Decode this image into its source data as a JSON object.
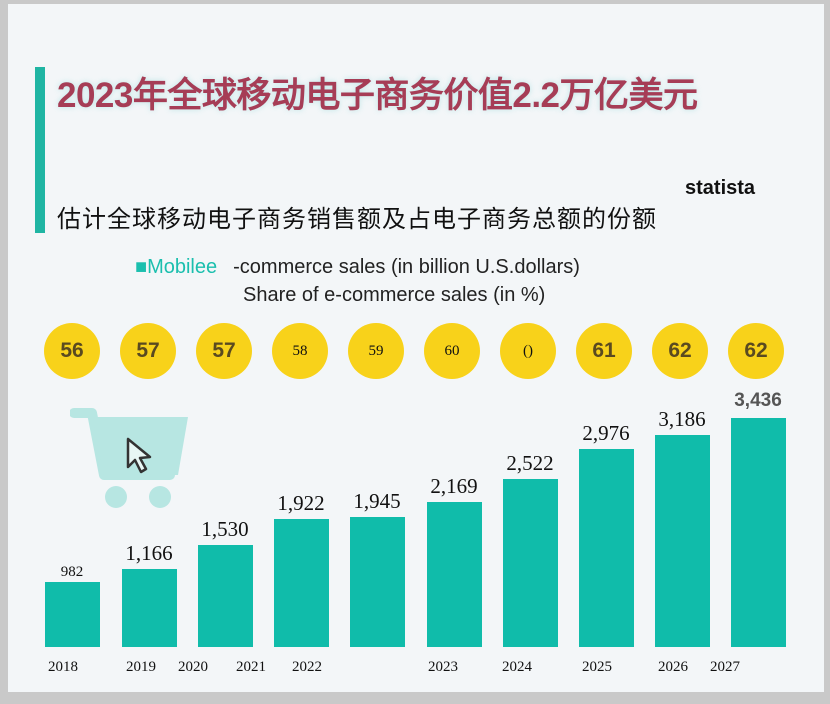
{
  "title": "2023年全球移动电子商务价值2.2万亿美元",
  "brand": "statista",
  "subtitle": "估计全球移动电子商务销售额及占电子商务总额的份额",
  "legend": {
    "marker": "■Mobilee",
    "sales_label": "-commerce sales (in billion U.S.dollars)",
    "share_label": "Share of e-commerce sales (in %)"
  },
  "colors": {
    "bar": "#10bcaa",
    "share_circle": "#f8d21a",
    "title": "#a63d56"
  },
  "chart_data": {
    "type": "bar",
    "title": "估计全球移动电子商务销售额及占电子商务总额的份额",
    "categories": [
      "2018",
      "2019",
      "2020",
      "2021",
      "2022",
      "2023",
      "2024",
      "2025",
      "2026",
      "2027"
    ],
    "x_tick_labels": [
      "2018",
      "2019",
      "2020",
      "2021",
      "2022",
      "2023",
      "2024",
      "2025",
      "2026",
      "2027"
    ],
    "series": [
      {
        "name": "Mobile e-commerce sales (in billion U.S.dollars)",
        "values": [
          982,
          1166,
          1530,
          1922,
          1945,
          2169,
          2522,
          2976,
          3186,
          3436
        ],
        "labels": [
          "982",
          "1,166",
          "1,530",
          "1,922",
          "1,945",
          "2,169",
          "2,522",
          "2,976",
          "3,186",
          "3,436"
        ]
      },
      {
        "name": "Share of e-commerce sales (in %)",
        "values": [
          56,
          57,
          57,
          58,
          59,
          60,
          null,
          61,
          62,
          62
        ],
        "labels": [
          "56",
          "57",
          "57",
          "58",
          "59",
          "60",
          "()",
          "61",
          "62",
          "62"
        ]
      }
    ],
    "ylim": [
      0,
      3436
    ],
    "grid": false,
    "legend_position": "top"
  }
}
